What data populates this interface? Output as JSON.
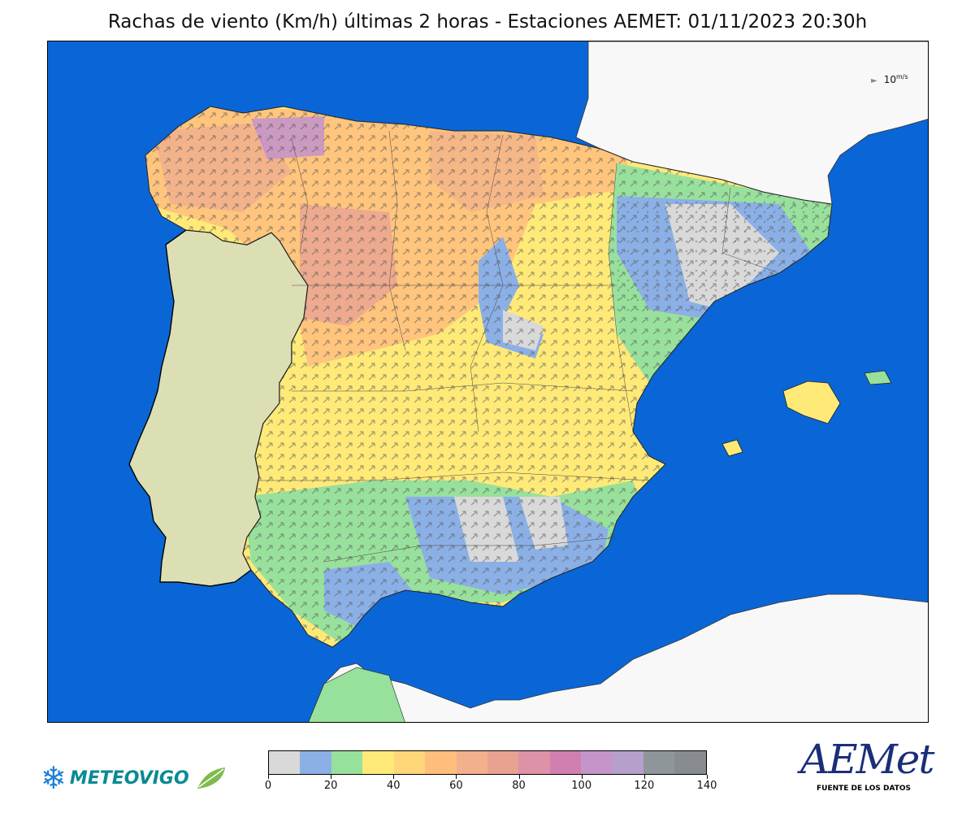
{
  "title": "Rachas de viento (Km/h) últimas 2 horas - Estaciones AEMET: 01/11/2023 20:30h",
  "scale_key": {
    "label": "10 m/s",
    "display": "10",
    "unit": "m/s"
  },
  "colorbar": {
    "min": 0,
    "max": 140,
    "step": 10,
    "colors": [
      "#d9d9d9",
      "#8bb0e6",
      "#98e19c",
      "#ffea78",
      "#ffd679",
      "#ffbe7c",
      "#f2b08c",
      "#e9a292",
      "#dd92a8",
      "#d17fb0",
      "#c595c9",
      "#b69fcb",
      "#8f969a",
      "#888c91"
    ],
    "tick_labels": [
      "0",
      "20",
      "40",
      "60",
      "80",
      "100",
      "120",
      "140"
    ]
  },
  "colors": {
    "sea": "#0a66d6",
    "portugal_land": "#dcdfb4",
    "foreign_land": "#f8f8f8"
  },
  "logos": {
    "meteovigo": "METEOVIGO",
    "aemet": "AEMet",
    "aemet_sub": "FUENTE DE LOS DATOS"
  }
}
